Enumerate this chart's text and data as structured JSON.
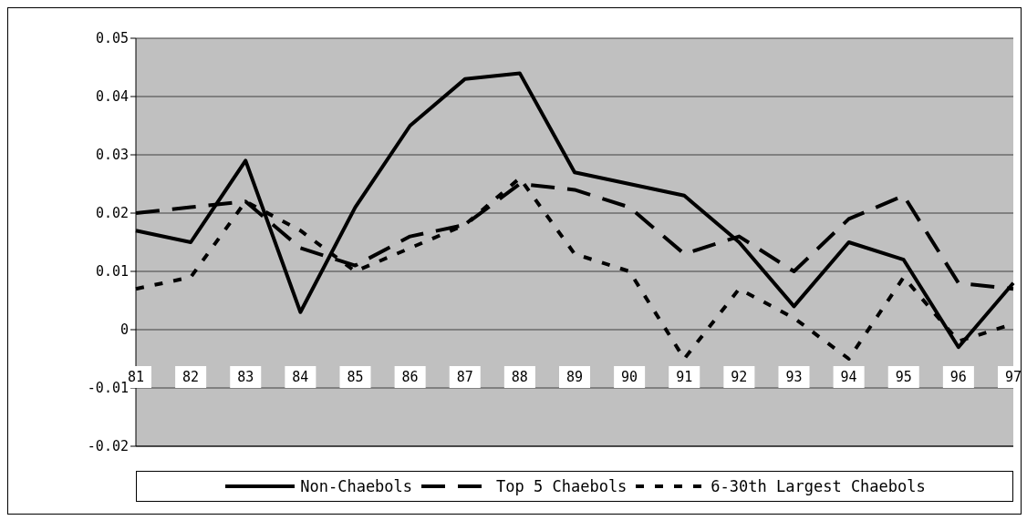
{
  "chart_data": {
    "type": "line",
    "categories": [
      "81",
      "82",
      "83",
      "84",
      "85",
      "86",
      "87",
      "88",
      "89",
      "90",
      "91",
      "92",
      "93",
      "94",
      "95",
      "96",
      "97"
    ],
    "series": [
      {
        "name": "Non-Chaebols",
        "color": "#000000",
        "line_style": "solid",
        "values": [
          0.017,
          0.015,
          0.029,
          0.003,
          0.021,
          0.035,
          0.043,
          0.044,
          0.027,
          0.025,
          0.023,
          0.015,
          0.004,
          0.015,
          0.012,
          -0.003,
          0.008
        ]
      },
      {
        "name": "Top 5 Chaebols",
        "color": "#000000",
        "line_style": "dashed",
        "values": [
          0.02,
          0.021,
          0.022,
          0.014,
          0.011,
          0.016,
          0.018,
          0.025,
          0.024,
          0.021,
          0.013,
          0.016,
          0.01,
          0.019,
          0.023,
          0.008,
          0.007
        ]
      },
      {
        "name": "6-30th Largest Chaebols",
        "color": "#000000",
        "line_style": "dotted",
        "values": [
          0.007,
          0.009,
          0.022,
          0.017,
          0.01,
          0.014,
          0.018,
          0.026,
          0.013,
          0.01,
          -0.005,
          0.007,
          0.002,
          -0.005,
          0.009,
          -0.002,
          0.001
        ]
      }
    ],
    "ylim": [
      -0.02,
      0.05
    ],
    "yticks": [
      {
        "value": -0.02,
        "label": "-0.02"
      },
      {
        "value": -0.01,
        "label": "-0.01"
      },
      0,
      0.01,
      0.02,
      0.03,
      0.04,
      0.05
    ],
    "grid": "y",
    "legend": "bottom",
    "marker": "none"
  }
}
